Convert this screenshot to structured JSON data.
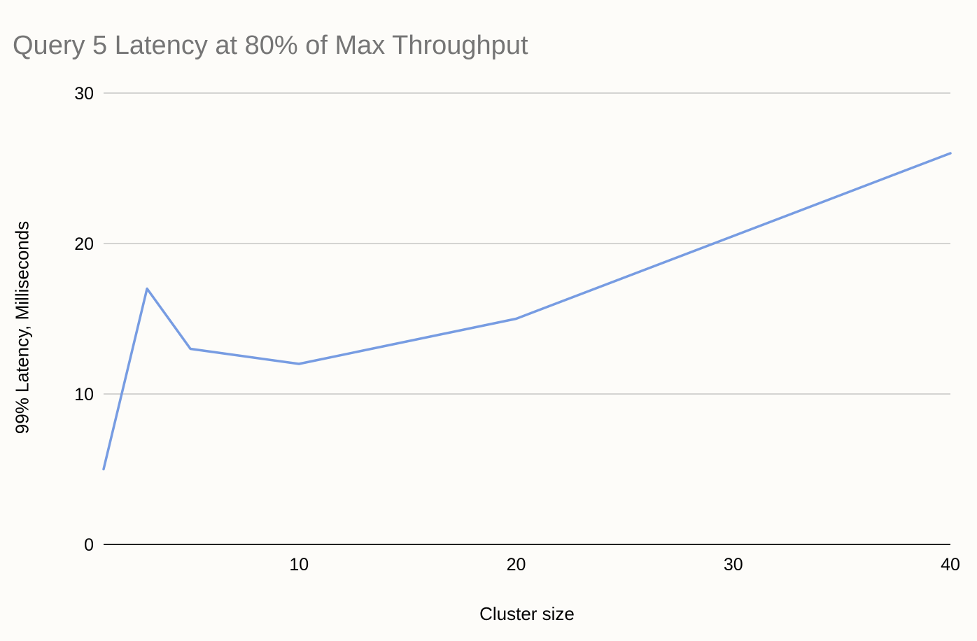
{
  "chart_data": {
    "type": "line",
    "title": "Query 5 Latency at 80% of Max Throughput",
    "xlabel": "Cluster size",
    "ylabel": "99% Latency, Milliseconds",
    "x": [
      1,
      3,
      5,
      10,
      20,
      40
    ],
    "series": [
      {
        "values": [
          5,
          17,
          13,
          12,
          15,
          26
        ],
        "color": "#779ce2"
      }
    ],
    "xlim": [
      1,
      40
    ],
    "ylim": [
      0,
      30
    ],
    "xticks": [
      10,
      20,
      30,
      40
    ],
    "yticks": [
      0,
      10,
      20,
      30
    ],
    "grid": true,
    "legend": "none"
  }
}
